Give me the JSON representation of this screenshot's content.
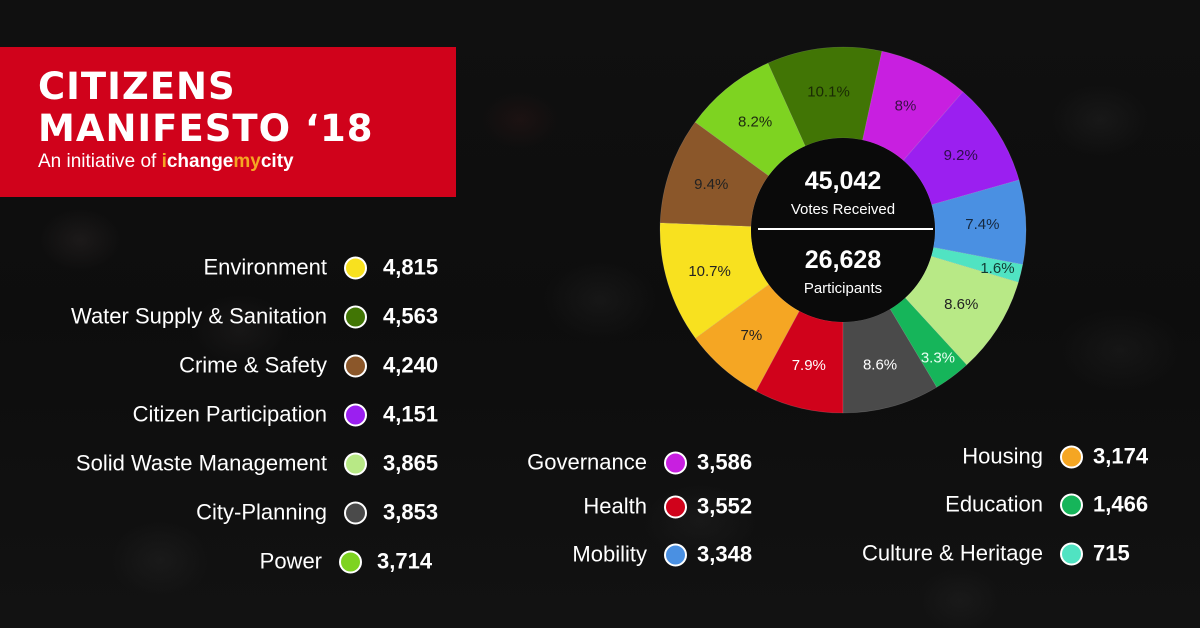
{
  "header": {
    "title_line1": "CITIZENS",
    "title_line2": "MANIFESTO ‘18",
    "subtitle_prefix": "An initiative of ",
    "brand_parts": [
      {
        "text": "i",
        "highlight": true
      },
      {
        "text": "change",
        "highlight": false
      },
      {
        "text": "my",
        "highlight": true
      },
      {
        "text": "city",
        "highlight": false
      }
    ],
    "banner_color": "#d0021b",
    "highlight_color": "#f5a623"
  },
  "center": {
    "votes_value": "45,042",
    "votes_label": "Votes Received",
    "participants_value": "26,628",
    "participants_label": "Participants"
  },
  "legend": {
    "left": [
      {
        "label": "Environment",
        "value": "4,815",
        "color": "#f8e11f"
      },
      {
        "label": "Water Supply & Sanitation",
        "value": "4,563",
        "color": "#417505"
      },
      {
        "label": "Crime & Safety",
        "value": "4,240",
        "color": "#8b572a"
      },
      {
        "label": "Citizen Participation",
        "value": "4,151",
        "color": "#9b1ff0"
      },
      {
        "label": "Solid Waste Management",
        "value": "3,865",
        "color": "#b8e986"
      },
      {
        "label": "City-Planning",
        "value": "3,853",
        "color": "#4a4a4a"
      },
      {
        "label": "Power",
        "value": "3,714",
        "color": "#7ed321"
      }
    ],
    "middle": [
      {
        "label": "Governance",
        "value": "3,586",
        "color": "#c81fe0"
      },
      {
        "label": "Health",
        "value": "3,552",
        "color": "#d0021b"
      },
      {
        "label": "Mobility",
        "value": "3,348",
        "color": "#4a90e2"
      }
    ],
    "right": [
      {
        "label": "Housing",
        "value": "3,174",
        "color": "#f5a623"
      },
      {
        "label": "Education",
        "value": "1,466",
        "color": "#16b55a"
      },
      {
        "label": "Culture & Heritage",
        "value": "715",
        "color": "#50e3c2"
      }
    ]
  },
  "chart_data": {
    "type": "pie",
    "variant": "donut",
    "title": "Citizens Manifesto '18",
    "total_votes": 45042,
    "participants": 26628,
    "start": "bottom",
    "direction": "clockwise",
    "slices": [
      {
        "name": "Health",
        "value": 3552,
        "percent_label": "7.9%",
        "color": "#d0021b",
        "label_color": "#ffffff"
      },
      {
        "name": "Housing",
        "value": 3174,
        "percent_label": "7%",
        "color": "#f5a623",
        "label_color": "#222222"
      },
      {
        "name": "Environment",
        "value": 4815,
        "percent_label": "10.7%",
        "color": "#f8e11f",
        "label_color": "#222222"
      },
      {
        "name": "Crime & Safety",
        "value": 4240,
        "percent_label": "9.4%",
        "color": "#8b572a",
        "label_color": "#222222"
      },
      {
        "name": "Power",
        "value": 3714,
        "percent_label": "8.2%",
        "color": "#7ed321",
        "label_color": "#1e2a10"
      },
      {
        "name": "Water Supply & Sanitation",
        "value": 4563,
        "percent_label": "10.1%",
        "color": "#417505",
        "label_color": "#1a2a05"
      },
      {
        "name": "Governance",
        "value": 3586,
        "percent_label": "8%",
        "color": "#c81fe0",
        "label_color": "#3a0f45"
      },
      {
        "name": "Citizen Participation",
        "value": 4151,
        "percent_label": "9.2%",
        "color": "#9b1ff0",
        "label_color": "#2e0d4a"
      },
      {
        "name": "Mobility",
        "value": 3348,
        "percent_label": "7.4%",
        "color": "#4a90e2",
        "label_color": "#16283f"
      },
      {
        "name": "Culture & Heritage",
        "value": 715,
        "percent_label": "1.6%",
        "color": "#50e3c2",
        "label_color": "#123a32"
      },
      {
        "name": "Solid Waste Management",
        "value": 3865,
        "percent_label": "8.6%",
        "color": "#b8e986",
        "label_color": "#222222"
      },
      {
        "name": "Education",
        "value": 1466,
        "percent_label": "3.3%",
        "color": "#16b55a",
        "label_color": "#e8fff2"
      },
      {
        "name": "City-Planning",
        "value": 3853,
        "percent_label": "8.6%",
        "color": "#4a4a4a",
        "label_color": "#ffffff"
      }
    ]
  }
}
